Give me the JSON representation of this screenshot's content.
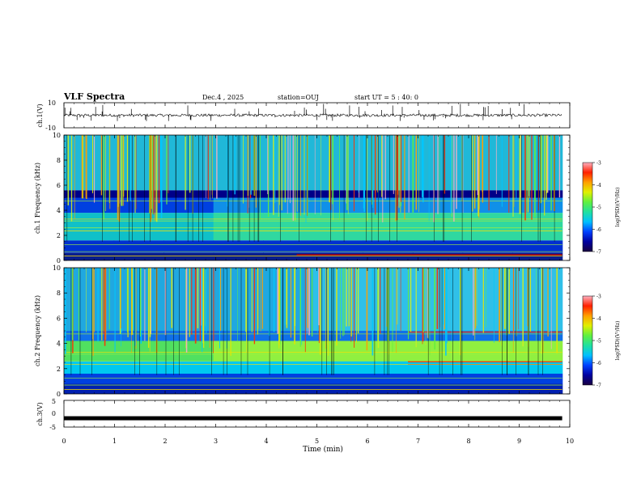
{
  "header": {
    "title": "VLF Spectra",
    "date": "Dec.4 , 2025",
    "station": "station=OUJ",
    "start_ut": "start UT = 5 : 40: 0"
  },
  "chart_data": [
    {
      "type": "line",
      "panel": "ch1-waveform",
      "ylabel": "ch.1(V)",
      "yticks": [
        "10",
        "-10"
      ],
      "ylim": [
        -10,
        10
      ],
      "xlim": [
        0,
        10
      ],
      "baseline": 0,
      "data_end_min": 9.85
    },
    {
      "type": "heatmap",
      "panel": "ch1-spectrogram",
      "ylabel": "ch.1 Frequency (kHz)",
      "yticks": [
        "0",
        "2",
        "4",
        "6",
        "8",
        "10"
      ],
      "ylim": [
        0,
        10
      ],
      "xlim": [
        0,
        10
      ],
      "data_end_min": 9.85,
      "colorbar": {
        "label": "log(PSD)(V²/Hz)",
        "ticks": [
          "-3",
          "-4",
          "-5",
          "-6",
          "-7"
        ],
        "range": [
          -7,
          -3
        ]
      }
    },
    {
      "type": "heatmap",
      "panel": "ch2-spectrogram",
      "ylabel": "ch.2 Frequency (kHz)",
      "yticks": [
        "0",
        "2",
        "4",
        "6",
        "8",
        "10"
      ],
      "ylim": [
        0,
        10
      ],
      "xlim": [
        0,
        10
      ],
      "data_end_min": 9.85,
      "colorbar": {
        "label": "log(PSD)(V²/Hz)",
        "ticks": [
          "-3",
          "-4",
          "-5",
          "-6",
          "-7"
        ],
        "range": [
          -7,
          -3
        ]
      }
    },
    {
      "type": "line",
      "panel": "ch3-waveform",
      "ylabel": "ch.3(V)",
      "yticks": [
        "5",
        "0",
        "-5"
      ],
      "ylim": [
        -5,
        5
      ],
      "xlim": [
        0,
        10
      ],
      "series": [
        {
          "values_constant": -1.7,
          "x_end": 9.85
        }
      ]
    }
  ],
  "xaxis": {
    "label": "Time (min)",
    "ticks": [
      "0",
      "1",
      "2",
      "3",
      "4",
      "5",
      "6",
      "7",
      "8",
      "9",
      "10"
    ]
  },
  "colors": {
    "colormap": [
      "#3c0a6e",
      "#0000b4",
      "#0050ff",
      "#00c8ff",
      "#00e6a0",
      "#64f03c",
      "#e6e600",
      "#ff8c00",
      "#e60000",
      "#ff96b4"
    ]
  }
}
